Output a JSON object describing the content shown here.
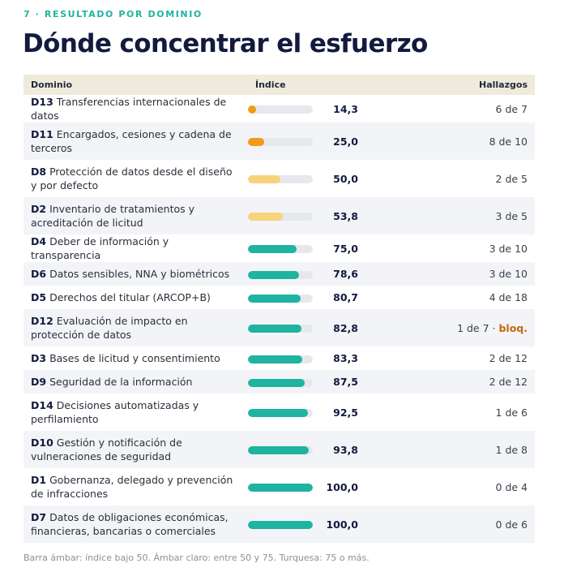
{
  "eyebrow": "7 · RESULTADO POR DOMINIO",
  "title": "Dónde concentrar el esfuerzo",
  "table": {
    "headers": {
      "domain": "Dominio",
      "index": "Índice",
      "findings": "Hallazgos"
    },
    "rows": [
      {
        "code": "D13",
        "name": "Transferencias internacionales de datos",
        "index": 14.3,
        "index_label": "14,3",
        "findings": "6 de 7",
        "level": "low"
      },
      {
        "code": "D11",
        "name": "Encargados, cesiones y cadena de terceros",
        "index": 25.0,
        "index_label": "25,0",
        "findings": "8 de 10",
        "level": "low"
      },
      {
        "code": "D8",
        "name": "Protección de datos desde el diseño y por defecto",
        "index": 50.0,
        "index_label": "50,0",
        "findings": "2 de 5",
        "level": "mid"
      },
      {
        "code": "D2",
        "name": "Inventario de tratamientos y acreditación de licitud",
        "index": 53.8,
        "index_label": "53,8",
        "findings": "3 de 5",
        "level": "mid"
      },
      {
        "code": "D4",
        "name": "Deber de información y transparencia",
        "index": 75.0,
        "index_label": "75,0",
        "findings": "3 de 10",
        "level": "high"
      },
      {
        "code": "D6",
        "name": "Datos sensibles, NNA y biométricos",
        "index": 78.6,
        "index_label": "78,6",
        "findings": "3 de 10",
        "level": "high"
      },
      {
        "code": "D5",
        "name": "Derechos del titular (ARCOP+B)",
        "index": 80.7,
        "index_label": "80,7",
        "findings": "4 de 18",
        "level": "high"
      },
      {
        "code": "D12",
        "name": "Evaluación de impacto en protección de datos",
        "index": 82.8,
        "index_label": "82,8",
        "findings": "1 de 7",
        "flag": "bloq.",
        "level": "high"
      },
      {
        "code": "D3",
        "name": "Bases de licitud y consentimiento",
        "index": 83.3,
        "index_label": "83,3",
        "findings": "2 de 12",
        "level": "high"
      },
      {
        "code": "D9",
        "name": "Seguridad de la información",
        "index": 87.5,
        "index_label": "87,5",
        "findings": "2 de 12",
        "level": "high"
      },
      {
        "code": "D14",
        "name": "Decisiones automatizadas y perfilamiento",
        "index": 92.5,
        "index_label": "92,5",
        "findings": "1 de 6",
        "level": "high"
      },
      {
        "code": "D10",
        "name": "Gestión y notificación de vulneraciones de seguridad",
        "index": 93.8,
        "index_label": "93,8",
        "findings": "1 de 8",
        "level": "high"
      },
      {
        "code": "D1",
        "name": "Gobernanza, delegado y prevención de infracciones",
        "index": 100.0,
        "index_label": "100,0",
        "findings": "0 de 4",
        "level": "high"
      },
      {
        "code": "D7",
        "name": "Datos de obligaciones económicas, financieras, bancarias o comerciales",
        "index": 100.0,
        "index_label": "100,0",
        "findings": "0 de 6",
        "level": "high"
      }
    ]
  },
  "colors": {
    "low": "#f29b17",
    "mid": "#f7d37e",
    "high": "#1fb3a1",
    "track": "#e6e8ee",
    "flag": "#c4690d"
  },
  "footnote": "Barra ámbar: índice bajo 50. Ámbar claro: entre 50 y 75. Turquesa: 75 o más."
}
